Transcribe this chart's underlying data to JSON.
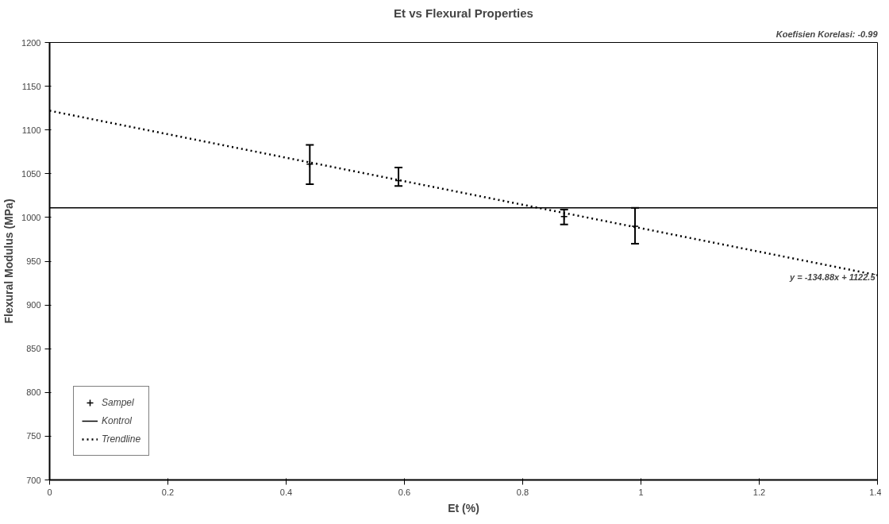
{
  "chart_data": {
    "type": "scatter",
    "title": "Et vs Flexural Properties",
    "xlabel": "Et (%)",
    "ylabel": "Flexural Modulus (MPa)",
    "series": [
      {
        "name": "Sampel",
        "color": "#000000",
        "x": [
          0.44,
          0.59,
          0.87,
          0.99
        ],
        "values": [
          1061,
          1042,
          1001,
          990
        ],
        "errors": [
          [
            1038,
            1083
          ],
          [
            1036,
            1057
          ],
          [
            992,
            1009
          ],
          [
            970,
            1011
          ]
        ],
        "marker": "cross"
      },
      {
        "name": "Kontrol",
        "type": "line",
        "color": "#000000",
        "x": [
          0,
          1.4
        ],
        "values": [
          1011,
          1011
        ],
        "line_style": "solid"
      },
      {
        "name": "Trendline",
        "type": "line",
        "color": "#000000",
        "x": [
          0,
          1.4
        ],
        "values": [
          1122,
          934
        ],
        "line_style": "dotted"
      }
    ],
    "annotations": [
      "Koefisien Korelasi: -0.99",
      "y = -134.88x + 1122.5"
    ],
    "xlim": [
      0,
      1.4
    ],
    "xticks": [
      0,
      0.2,
      0.4,
      0.6,
      0.8,
      1,
      1.2,
      1.4
    ],
    "ylim": [
      700,
      1200
    ],
    "yticks": [
      700,
      750,
      800,
      850,
      900,
      950,
      1000,
      1050,
      1100,
      1150,
      1200
    ],
    "grid": false,
    "legend": "bottom left"
  }
}
